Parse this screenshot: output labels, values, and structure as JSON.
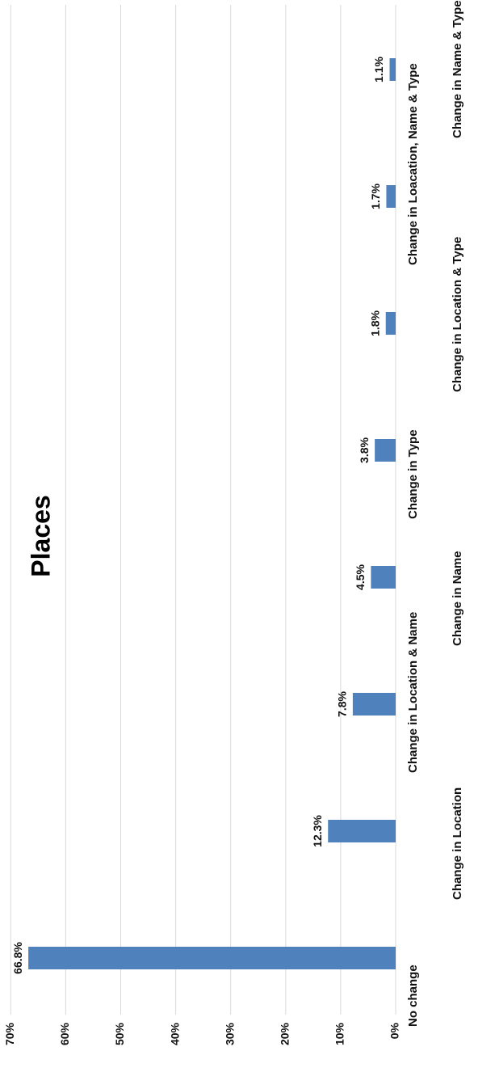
{
  "chart_data": {
    "type": "bar",
    "orientation": "rotated-90-ccw",
    "title": "Places",
    "categories": [
      "No change",
      "Change in Location",
      "Change in Location & Name",
      "Change in Name",
      "Change in Type",
      "Change in Location & Type",
      "Change in Loacation, Name & Type",
      "Change in Name & Type"
    ],
    "values": [
      66.8,
      12.3,
      7.8,
      4.5,
      3.8,
      1.8,
      1.7,
      1.1
    ],
    "data_labels": [
      "66.8%",
      "12.3%",
      "7.8%",
      "4.5%",
      "3.8%",
      "1.8%",
      "1.7%",
      "1.1%"
    ],
    "ylim": [
      0,
      70
    ],
    "yticks": [
      "0%",
      "10%",
      "20%",
      "30%",
      "40%",
      "50%",
      "60%",
      "70%"
    ],
    "grid": true,
    "legend": "none",
    "bar_color": "#4f81bd",
    "grid_color": "#d9d9d9"
  }
}
